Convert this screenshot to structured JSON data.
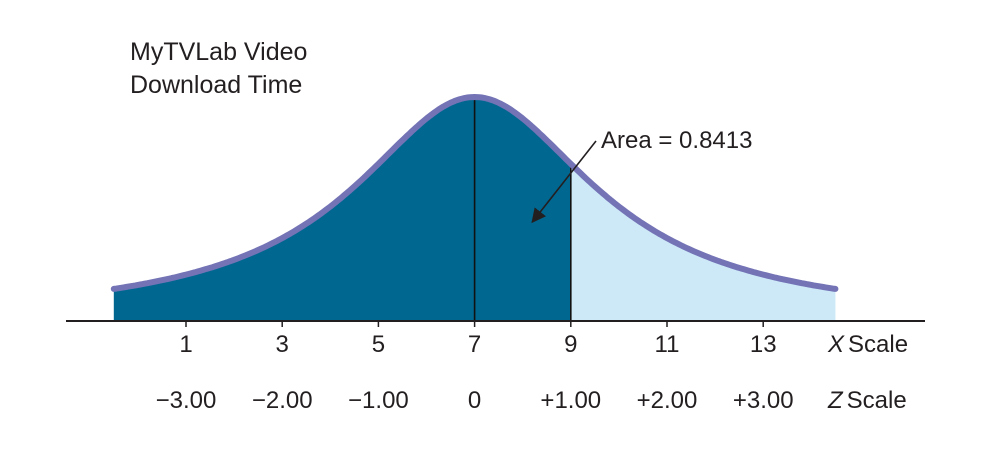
{
  "chart_data": {
    "type": "area",
    "title_lines": [
      "MyTVLab Video",
      "Download Time"
    ],
    "distribution": "normal",
    "mean": 7,
    "std_dev": 2,
    "shaded_upper_x": 9,
    "x_scale": {
      "ticks": [
        "1",
        "3",
        "5",
        "7",
        "9",
        "11",
        "13"
      ],
      "values": [
        1,
        3,
        5,
        7,
        9,
        11,
        13
      ],
      "label_var": "X",
      "label_word": "Scale"
    },
    "z_scale": {
      "ticks": [
        "−3.00",
        "−2.00",
        "−1.00",
        "0",
        "+1.00",
        "+2.00",
        "+3.00"
      ],
      "label_var": "Z",
      "label_word": "Scale"
    },
    "annotation": {
      "text": "Area = 0.8413",
      "points_to_x": 8.2
    },
    "colors": {
      "shaded": "#006790",
      "unshaded": "#cde9f8",
      "curve": "#7373b6",
      "ink": "#231f20"
    }
  }
}
